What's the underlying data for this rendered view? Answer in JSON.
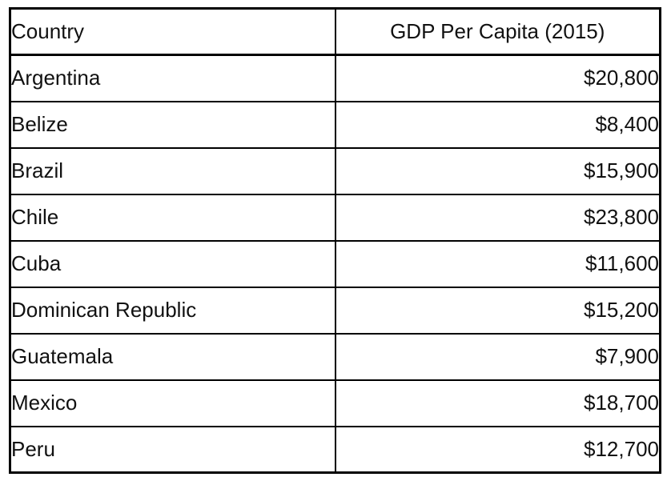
{
  "chart_data": {
    "type": "table",
    "columns": [
      "Country",
      "GDP Per Capita (2015)"
    ],
    "rows": [
      {
        "country": "Argentina",
        "gdp": "$20,800"
      },
      {
        "country": "Belize",
        "gdp": "$8,400"
      },
      {
        "country": "Brazil",
        "gdp": "$15,900"
      },
      {
        "country": "Chile",
        "gdp": "$23,800"
      },
      {
        "country": "Cuba",
        "gdp": "$11,600"
      },
      {
        "country": "Dominican Republic",
        "gdp": "$15,200"
      },
      {
        "country": "Guatemala",
        "gdp": "$7,900"
      },
      {
        "country": "Mexico",
        "gdp": "$18,700"
      },
      {
        "country": "Peru",
        "gdp": "$12,700"
      }
    ],
    "border_color": "#000000",
    "background_color": "#ffffff",
    "text_color": "#111111"
  }
}
